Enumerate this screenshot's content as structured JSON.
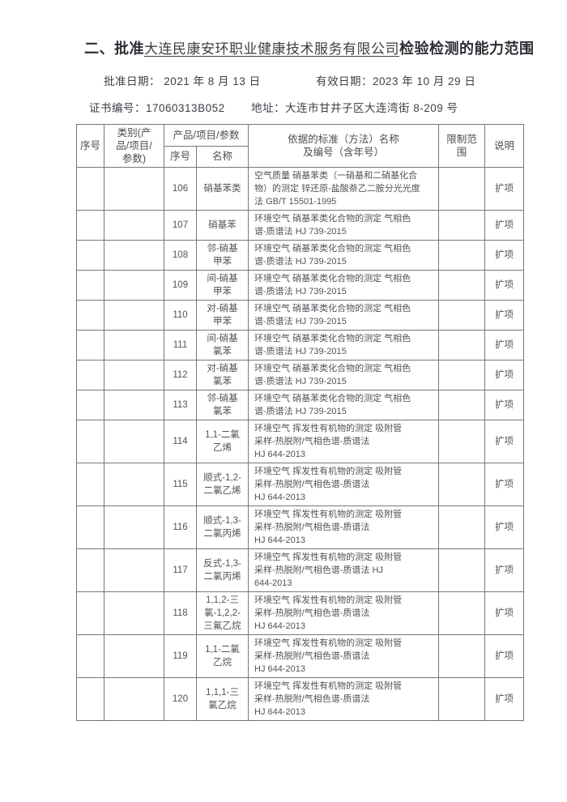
{
  "page": {
    "title_prefix": "二、批准",
    "title_company": "大连民康安环职业健康技术服务有限公司",
    "title_suffix": "检验检测的能力范围",
    "approval_date_label": "批准日期：",
    "approval_date": "2021 年 8 月 13 日",
    "valid_date_label": "有效日期：",
    "valid_date": "2023 年 10 月 29 日",
    "cert_no_label": "证书编号：",
    "cert_no": "17060313B052",
    "address_label": "地址：",
    "address": "大连市甘井子区大连湾街 8-209 号"
  },
  "table": {
    "headers": {
      "seq": "序号",
      "category": "类别(产\n品/项目/\n参数)",
      "product": "产品/项目/参数",
      "product_no": "序号",
      "product_name": "名称",
      "standard": "依据的标准（方法）名称\n及编号（含年号）",
      "limit": "限制范\n围",
      "note": "说明"
    },
    "rows": [
      {
        "seq": "",
        "category": "",
        "no": "106",
        "name": "硝基苯类",
        "standard": "空气质量 硝基苯类（一硝基和二硝基化合\n物）的测定 锌还原-盐酸萘乙二胺分光光度\n法 GB/T 15501-1995",
        "limit": "",
        "note": "扩项"
      },
      {
        "seq": "",
        "category": "",
        "no": "107",
        "name": "硝基苯",
        "standard": "环境空气 硝基苯类化合物的测定 气相色\n谱-质谱法 HJ 739-2015",
        "limit": "",
        "note": "扩项"
      },
      {
        "seq": "",
        "category": "",
        "no": "108",
        "name": "邻-硝基\n甲苯",
        "standard": "环境空气 硝基苯类化合物的测定 气相色\n谱-质谱法 HJ 739-2015",
        "limit": "",
        "note": "扩项"
      },
      {
        "seq": "",
        "category": "",
        "no": "109",
        "name": "间-硝基\n甲苯",
        "standard": "环境空气 硝基苯类化合物的测定 气相色\n谱-质谱法 HJ 739-2015",
        "limit": "",
        "note": "扩项"
      },
      {
        "seq": "",
        "category": "",
        "no": "110",
        "name": "对-硝基\n甲苯",
        "standard": "环境空气 硝基苯类化合物的测定 气相色\n谱-质谱法 HJ 739-2015",
        "limit": "",
        "note": "扩项"
      },
      {
        "seq": "",
        "category": "",
        "no": "111",
        "name": "间-硝基\n氯苯",
        "standard": "环境空气 硝基苯类化合物的测定 气相色\n谱-质谱法 HJ 739-2015",
        "limit": "",
        "note": "扩项"
      },
      {
        "seq": "",
        "category": "",
        "no": "112",
        "name": "对-硝基\n氯苯",
        "standard": "环境空气 硝基苯类化合物的测定 气相色\n谱-质谱法 HJ 739-2015",
        "limit": "",
        "note": "扩项"
      },
      {
        "seq": "",
        "category": "",
        "no": "113",
        "name": "邻-硝基\n氯苯",
        "standard": "环境空气 硝基苯类化合物的测定 气相色\n谱-质谱法 HJ 739-2015",
        "limit": "",
        "note": "扩项"
      },
      {
        "seq": "",
        "category": "",
        "no": "114",
        "name": "1,1-二氯\n乙烯",
        "standard": "环境空气 挥发性有机物的测定 吸附管\n采样-热脱附/气相色谱-质谱法\nHJ 644-2013",
        "limit": "",
        "note": "扩项"
      },
      {
        "seq": "",
        "category": "",
        "no": "115",
        "name": "顺式-1,2-\n二氯乙烯",
        "standard": "环境空气 挥发性有机物的测定 吸附管\n采样-热脱附/气相色谱-质谱法\nHJ 644-2013",
        "limit": "",
        "note": "扩项"
      },
      {
        "seq": "",
        "category": "",
        "no": "116",
        "name": "顺式-1,3-\n二氯丙烯",
        "standard": "环境空气 挥发性有机物的测定 吸附管\n采样-热脱附/气相色谱-质谱法\nHJ 644-2013",
        "limit": "",
        "note": "扩项"
      },
      {
        "seq": "",
        "category": "",
        "no": "117",
        "name": "反式-1,3-\n二氯丙烯",
        "standard": "环境空气 挥发性有机物的测定 吸附管\n采样-热脱附/气相色谱-质谱法 HJ\n644-2013",
        "limit": "",
        "note": "扩项"
      },
      {
        "seq": "",
        "category": "",
        "no": "118",
        "name": "1,1,2-三\n氯-1,2,2-\n三氟乙烷",
        "standard": "环境空气 挥发性有机物的测定 吸附管\n采样-热脱附/气相色谱-质谱法\nHJ 644-2013",
        "limit": "",
        "note": "扩项"
      },
      {
        "seq": "",
        "category": "",
        "no": "119",
        "name": "1,1-二氯\n乙烷",
        "standard": "环境空气 挥发性有机物的测定 吸附管\n采样-热脱附/气相色谱-质谱法\nHJ 644-2013",
        "limit": "",
        "note": "扩项"
      },
      {
        "seq": "",
        "category": "",
        "no": "120",
        "name": "1,1,1-三\n氯乙烷",
        "standard": "环境空气 挥发性有机物的测定 吸附管\n采样-热脱附/气相色谱-质谱法\nHJ 644-2013",
        "limit": "",
        "note": "扩项"
      }
    ]
  }
}
